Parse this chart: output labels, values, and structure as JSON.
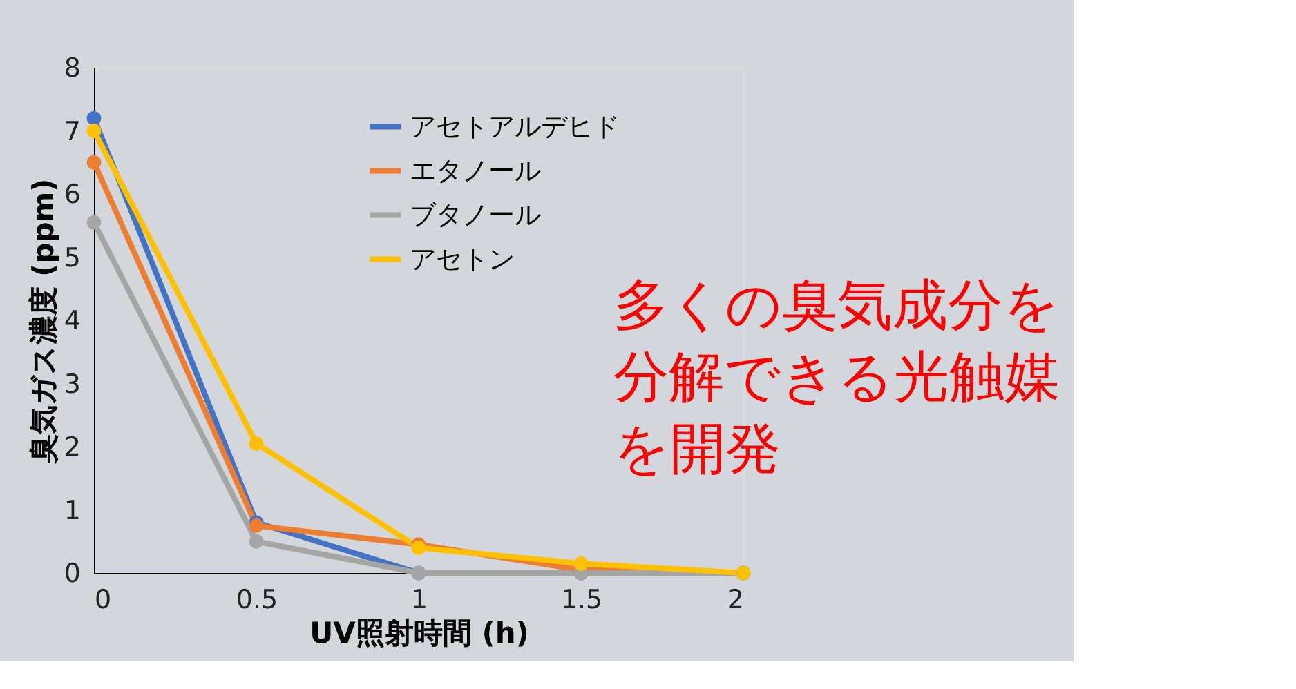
{
  "chart_data": {
    "type": "line",
    "xlabel": "UV照射時間 (h)",
    "ylabel": "臭気ガス濃度 (ppm)",
    "x": [
      0,
      0.5,
      1,
      1.5,
      2
    ],
    "series": [
      {
        "name": "アセトアルデヒド",
        "color": "#4472c4",
        "values": [
          7.2,
          0.8,
          0,
          0,
          0
        ]
      },
      {
        "name": "エタノール",
        "color": "#ed7d31",
        "values": [
          6.5,
          0.75,
          0.45,
          0.05,
          0
        ]
      },
      {
        "name": "ブタノール",
        "color": "#a5a5a5",
        "values": [
          5.55,
          0.5,
          0,
          0,
          0
        ]
      },
      {
        "name": "アセトン",
        "color": "#ffc000",
        "values": [
          7.0,
          2.05,
          0.4,
          0.15,
          0
        ]
      }
    ],
    "xlim": [
      0,
      2
    ],
    "xticks": [
      0,
      0.5,
      1,
      1.5,
      2
    ],
    "ylim": [
      0,
      8
    ],
    "yticks": [
      0,
      1,
      2,
      3,
      4,
      5,
      6,
      7,
      8
    ],
    "grid": false,
    "legend": "top right",
    "marker": "circle",
    "line_style": "solid",
    "annotations": [
      "多くの臭気成分を分解できる光触媒を開発"
    ]
  }
}
